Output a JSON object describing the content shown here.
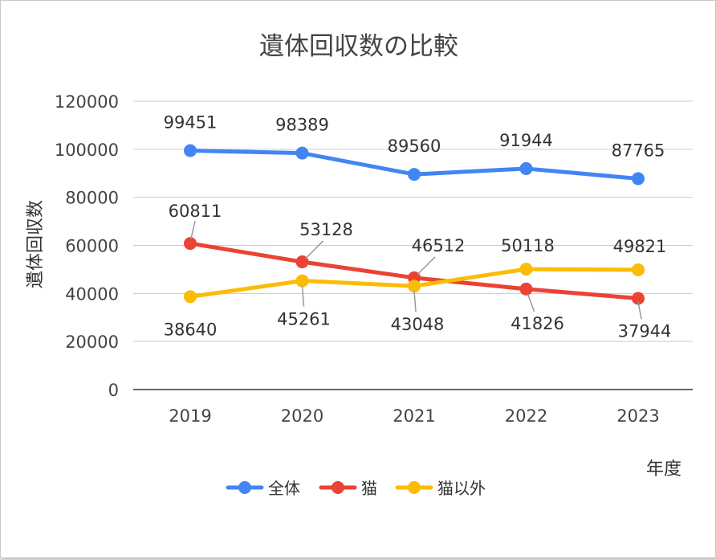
{
  "chart_data": {
    "type": "line",
    "title": "遺体回収数の比較",
    "xlabel": "年度",
    "ylabel": "遺体回収数",
    "categories": [
      "2019",
      "2020",
      "2021",
      "2022",
      "2023"
    ],
    "ylim": [
      0,
      120000
    ],
    "yticks": [
      "0",
      "20000",
      "40000",
      "60000",
      "80000",
      "100000",
      "120000"
    ],
    "grid": true,
    "legend_position": "bottom",
    "series": [
      {
        "name": "全体",
        "color": "#4285f4",
        "values": [
          99451,
          98389,
          89560,
          91944,
          87765
        ],
        "labels": [
          "99451",
          "98389",
          "89560",
          "91944",
          "87765"
        ]
      },
      {
        "name": "猫",
        "color": "#ea4335",
        "values": [
          60811,
          53128,
          46512,
          41826,
          37944
        ],
        "labels": [
          "60811",
          "53128",
          "46512",
          "41826",
          "37944"
        ]
      },
      {
        "name": "猫以外",
        "color": "#fbbc04",
        "values": [
          38640,
          45261,
          43048,
          50118,
          49821
        ],
        "labels": [
          "38640",
          "45261",
          "43048",
          "50118",
          "49821"
        ]
      }
    ]
  }
}
